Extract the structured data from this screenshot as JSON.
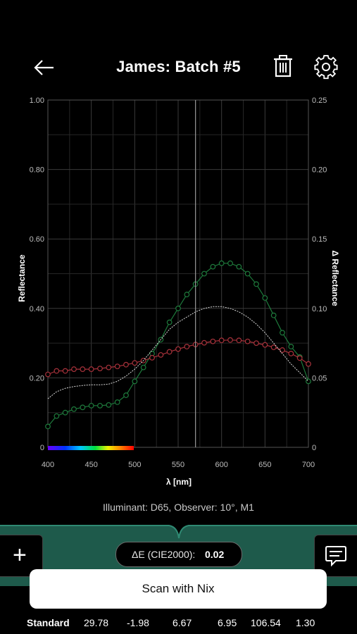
{
  "header": {
    "title": "James: Batch #5",
    "back_icon": "arrow-left-icon",
    "delete_icon": "trash-icon",
    "settings_icon": "gear-icon"
  },
  "chart_data": {
    "type": "line",
    "xlabel": "λ [nm]",
    "ylabel": "Reflectance",
    "y2label": "Δ Reflectance",
    "xlim": [
      400,
      700
    ],
    "ylim": [
      0,
      1.0
    ],
    "y2lim": [
      0,
      0.25
    ],
    "x_ticks": [
      "400",
      "450",
      "500",
      "550",
      "600",
      "650",
      "700"
    ],
    "y_ticks": [
      "0",
      "0.20",
      "0.40",
      "0.60",
      "0.80",
      "1.00"
    ],
    "y2_ticks": [
      "0",
      "0.05",
      "0.10",
      "0.15",
      "0.20",
      "0.25"
    ],
    "cursor_x": 570,
    "grid": true,
    "x": [
      400,
      410,
      420,
      430,
      440,
      450,
      460,
      470,
      480,
      490,
      500,
      510,
      520,
      530,
      540,
      550,
      560,
      570,
      580,
      590,
      600,
      610,
      620,
      630,
      640,
      650,
      660,
      670,
      680,
      690,
      700
    ],
    "series": [
      {
        "color": "#1e7a3c",
        "markers": true,
        "values": [
          0.06,
          0.09,
          0.1,
          0.11,
          0.115,
          0.12,
          0.12,
          0.122,
          0.13,
          0.15,
          0.19,
          0.23,
          0.27,
          0.31,
          0.36,
          0.4,
          0.44,
          0.47,
          0.5,
          0.52,
          0.53,
          0.53,
          0.52,
          0.5,
          0.47,
          0.43,
          0.38,
          0.33,
          0.29,
          0.26,
          0.19
        ]
      },
      {
        "color": "#a8323b",
        "markers": true,
        "values": [
          0.21,
          0.22,
          0.22,
          0.225,
          0.225,
          0.225,
          0.227,
          0.23,
          0.233,
          0.238,
          0.243,
          0.25,
          0.258,
          0.266,
          0.275,
          0.283,
          0.29,
          0.296,
          0.301,
          0.305,
          0.308,
          0.309,
          0.308,
          0.305,
          0.3,
          0.295,
          0.288,
          0.28,
          0.27,
          0.257,
          0.24
        ]
      },
      {
        "color": "#d9d9d9",
        "markers": false,
        "dashed": true,
        "values": [
          0.14,
          0.16,
          0.17,
          0.175,
          0.178,
          0.18,
          0.18,
          0.182,
          0.19,
          0.205,
          0.225,
          0.25,
          0.28,
          0.31,
          0.34,
          0.36,
          0.375,
          0.39,
          0.4,
          0.405,
          0.405,
          0.4,
          0.39,
          0.375,
          0.355,
          0.33,
          0.3,
          0.27,
          0.24,
          0.215,
          0.19
        ]
      }
    ]
  },
  "illuminant_text": "Illuminant: D65, Observer: 10°, M1",
  "delta_e": {
    "label": "ΔE (CIE2000):",
    "value": "0.02"
  },
  "add_button": {
    "icon": "plus-icon",
    "label": "+"
  },
  "notes_button": {
    "icon": "comment-icon"
  },
  "scan_button": {
    "label": "Scan with Nix"
  },
  "standard_row": {
    "label": "Standard",
    "values": [
      "29.78",
      "-1.98",
      "6.67",
      "6.95",
      "106.54",
      "1.30"
    ]
  },
  "colors": {
    "panel": "#1e5a4b",
    "background": "#000000"
  }
}
